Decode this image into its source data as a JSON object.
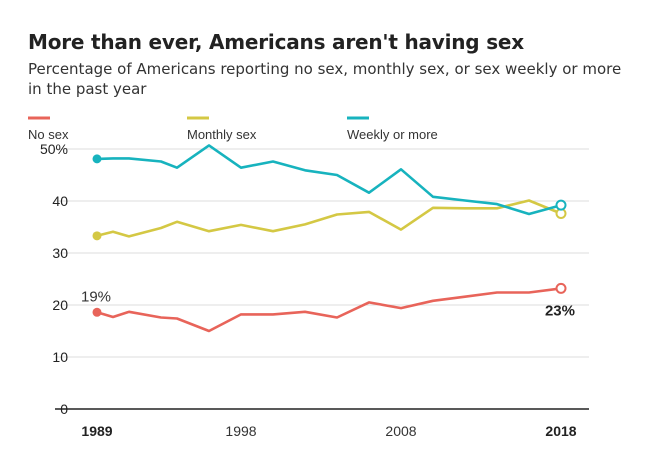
{
  "chart_data": {
    "type": "line",
    "title": "More than ever, Americans aren't having sex",
    "subtitle": "Percentage of Americans reporting no sex, monthly sex, or sex weekly or more in the past year",
    "x": [
      1989,
      1990,
      1991,
      1993,
      1994,
      1996,
      1998,
      2000,
      2002,
      2004,
      2006,
      2008,
      2010,
      2012,
      2014,
      2016,
      2018
    ],
    "series": [
      {
        "name": "No sex",
        "color": "#e8645a",
        "values": [
          18.6,
          17.7,
          18.7,
          17.6,
          17.4,
          15.0,
          18.2,
          18.2,
          18.7,
          17.6,
          20.5,
          19.4,
          20.8,
          21.6,
          22.4,
          22.4,
          23.2
        ]
      },
      {
        "name": "Monthly sex",
        "color": "#d4c844",
        "values": [
          33.3,
          34.1,
          33.2,
          34.8,
          36.0,
          34.2,
          35.4,
          34.2,
          35.5,
          37.4,
          37.9,
          34.5,
          38.7,
          38.6,
          38.6,
          40.1,
          37.6
        ]
      },
      {
        "name": "Weekly or more",
        "color": "#17b3be",
        "values": [
          48.1,
          48.2,
          48.2,
          47.6,
          46.4,
          50.7,
          46.4,
          47.6,
          45.9,
          45.0,
          41.6,
          46.1,
          40.8,
          40.1,
          39.4,
          37.5,
          39.2
        ]
      }
    ],
    "xlim": [
      1989,
      2018
    ],
    "ylim": [
      0,
      50
    ],
    "y_ticks": [
      0,
      10,
      20,
      30,
      40,
      50
    ],
    "y_tick_labels": [
      "0",
      "10",
      "20",
      "30",
      "40",
      "50%"
    ],
    "x_ticks": [
      {
        "value": 1989,
        "label": "1989",
        "bold": true
      },
      {
        "value": 1998,
        "label": "1998",
        "bold": false
      },
      {
        "value": 2008,
        "label": "2008",
        "bold": false
      },
      {
        "value": 2018,
        "label": "2018",
        "bold": true
      }
    ],
    "annotations": [
      {
        "text": "19%",
        "x": 1989,
        "y": 18.6,
        "bold": false
      },
      {
        "text": "23%",
        "x": 2018,
        "y": 23.2,
        "bold": true
      }
    ],
    "legend_position": "top",
    "grid": true
  }
}
